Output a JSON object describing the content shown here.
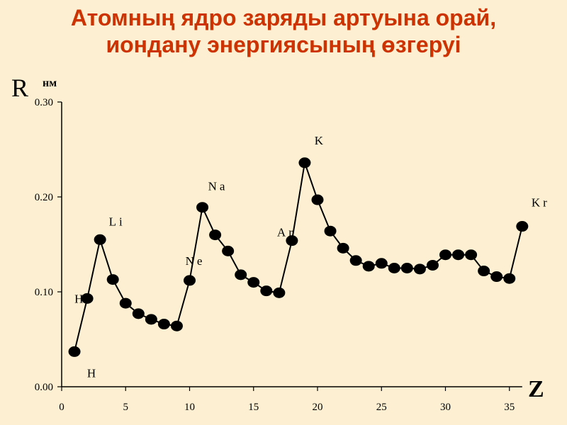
{
  "title_line1": "Атомның ядро заряды артуына орай,",
  "title_line2": "иондану энергиясының өзгеруі",
  "chart_data": {
    "type": "line",
    "ylabel": "R",
    "yunit": "нм",
    "xlabel": "Z",
    "xlim": [
      0,
      36
    ],
    "ylim": [
      0,
      0.3
    ],
    "xticks": [
      0,
      5,
      10,
      15,
      20,
      25,
      30,
      35
    ],
    "xtick_labels": [
      "0",
      "5",
      "10",
      "15",
      "20",
      "25",
      "30",
      "35"
    ],
    "yticks": [
      0,
      0.1,
      0.2,
      0.3
    ],
    "ytick_labels": [
      "0.00",
      "0.10",
      "0.20",
      "0.30"
    ],
    "grid": false,
    "line_color": "#000000",
    "marker_color": "#000000",
    "x": [
      1,
      2,
      3,
      4,
      5,
      6,
      7,
      8,
      9,
      10,
      11,
      12,
      13,
      14,
      15,
      16,
      17,
      18,
      19,
      20,
      21,
      22,
      23,
      24,
      25,
      26,
      27,
      28,
      29,
      30,
      31,
      32,
      33,
      34,
      35,
      36
    ],
    "y": [
      0.037,
      0.093,
      0.155,
      0.113,
      0.088,
      0.077,
      0.071,
      0.066,
      0.064,
      0.112,
      0.189,
      0.16,
      0.143,
      0.118,
      0.11,
      0.101,
      0.099,
      0.154,
      0.236,
      0.197,
      0.164,
      0.146,
      0.133,
      0.127,
      0.13,
      0.125,
      0.125,
      0.124,
      0.128,
      0.139,
      0.139,
      0.139,
      0.122,
      0.116,
      0.114,
      0.169
    ],
    "annotations": [
      {
        "text": "H",
        "x": 1,
        "y": 0.037
      },
      {
        "text": "He",
        "x": 2,
        "y": 0.093
      },
      {
        "text": "Li",
        "x": 3,
        "y": 0.155
      },
      {
        "text": "Ne",
        "x": 10,
        "y": 0.112
      },
      {
        "text": "Na",
        "x": 11,
        "y": 0.189
      },
      {
        "text": "Ar",
        "x": 18,
        "y": 0.154
      },
      {
        "text": "K",
        "x": 19,
        "y": 0.236
      },
      {
        "text": "Kr",
        "x": 36,
        "y": 0.169
      }
    ]
  }
}
